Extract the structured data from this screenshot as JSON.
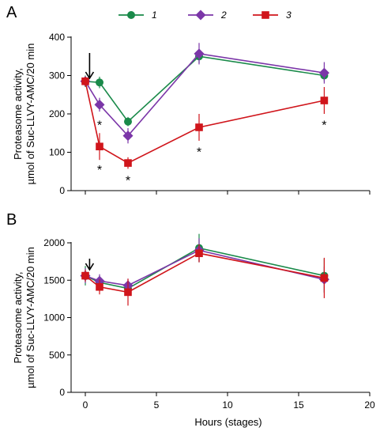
{
  "legend": [
    {
      "label": "1",
      "color": "#1a8a4a",
      "marker": "circle"
    },
    {
      "label": "2",
      "color": "#7b36a8",
      "marker": "diamond"
    },
    {
      "label": "3",
      "color": "#d0151b",
      "marker": "square"
    }
  ],
  "chart_data": [
    {
      "type": "line",
      "panel_label": "A",
      "ylabel_line1": "Proteasome activity,",
      "ylabel_line2": "µmol of Suc-LLVY-AMC/20 min",
      "ylim": [
        0,
        400
      ],
      "yticks": [
        0,
        100,
        200,
        300,
        400
      ],
      "xlim": [
        -1,
        20
      ],
      "xticks": [
        0,
        5,
        10,
        15,
        20
      ],
      "arrow_x": 0.3,
      "series": [
        {
          "name": "1",
          "color": "#1a8a4a",
          "marker": "circle",
          "x": [
            0,
            1,
            3,
            8,
            16.8
          ],
          "y": [
            285,
            282,
            180,
            350,
            300
          ],
          "err": [
            15,
            15,
            12,
            18,
            15
          ]
        },
        {
          "name": "2",
          "color": "#7b36a8",
          "marker": "diamond",
          "x": [
            0,
            1,
            3,
            8,
            16.8
          ],
          "y": [
            285,
            224,
            143,
            357,
            307
          ],
          "err": [
            12,
            18,
            20,
            28,
            28
          ]
        },
        {
          "name": "3",
          "color": "#d0151b",
          "marker": "square",
          "x": [
            0,
            1,
            3,
            8,
            16.8
          ],
          "y": [
            285,
            115,
            72,
            165,
            235
          ],
          "err": [
            12,
            35,
            15,
            35,
            35
          ]
        }
      ],
      "annotations": [
        {
          "text": "*",
          "x": 1,
          "y": 172
        },
        {
          "text": "*",
          "x": 1,
          "y": 56
        },
        {
          "text": "*",
          "x": 3,
          "y": 28
        },
        {
          "text": "*",
          "x": 8,
          "y": 102
        },
        {
          "text": "*",
          "x": 16.8,
          "y": 172
        }
      ]
    },
    {
      "type": "line",
      "panel_label": "B",
      "ylabel_line1": "Proteasome activity,",
      "ylabel_line2": "µmol of Suc-LLVY-AMC/20 min",
      "ylim": [
        0,
        2000
      ],
      "yticks": [
        0,
        500,
        1000,
        1500,
        2000
      ],
      "xlim": [
        -1,
        20
      ],
      "xticks": [
        0,
        5,
        10,
        15,
        20
      ],
      "xlabel": "Hours (stages)",
      "arrow_x": 0.3,
      "series": [
        {
          "name": "1",
          "color": "#1a8a4a",
          "marker": "circle",
          "x": [
            0,
            1,
            3,
            8,
            16.8
          ],
          "y": [
            1560,
            1470,
            1390,
            1930,
            1560
          ],
          "err": [
            130,
            90,
            80,
            190,
            230
          ]
        },
        {
          "name": "2",
          "color": "#7b36a8",
          "marker": "diamond",
          "x": [
            0,
            1,
            3,
            8,
            16.8
          ],
          "y": [
            1560,
            1490,
            1430,
            1900,
            1510
          ],
          "err": [
            100,
            90,
            90,
            160,
            170
          ]
        },
        {
          "name": "3",
          "color": "#d0151b",
          "marker": "square",
          "x": [
            0,
            1,
            3,
            8,
            16.8
          ],
          "y": [
            1560,
            1410,
            1340,
            1860,
            1530
          ],
          "err": [
            80,
            100,
            180,
            120,
            270
          ]
        }
      ]
    }
  ]
}
